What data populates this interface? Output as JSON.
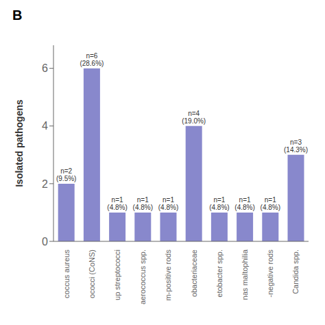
{
  "chart_data": {
    "type": "bar",
    "title": "B",
    "ylabel": "Isolated pathogens",
    "categories": [
      "coccus aureus",
      "ococci (CoNS)",
      "up streptococci",
      "aerococcus spp.",
      "m-positive rods",
      "obacteriaceae",
      "etobacter spp.",
      "nas maltophilia",
      "-negative rods",
      "Candida spp."
    ],
    "values": [
      2,
      6,
      1,
      1,
      1,
      4,
      1,
      1,
      1,
      3
    ],
    "annotations": [
      "n=2\n(9.5%)",
      "n=6\n(28.6%)",
      "n=1\n(4.8%)",
      "n=1\n(4.8%)",
      "n=1\n(4.8%)",
      "n=4\n(19.0%)",
      "n=1\n(4.8%)",
      "n=1\n(4.8%)",
      "n=1\n(4.8%)",
      "n=3\n(14.3%)"
    ],
    "color": "#8888cc",
    "ylim": [
      0,
      6.8
    ],
    "yticks": [
      0,
      2,
      4,
      6
    ],
    "grid": false
  }
}
